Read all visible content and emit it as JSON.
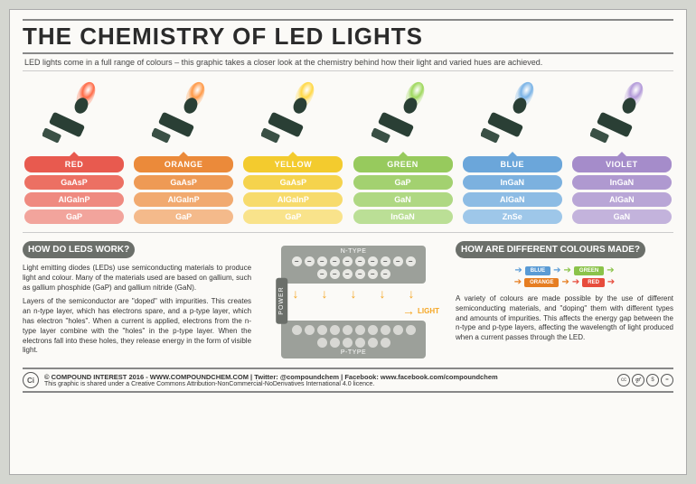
{
  "title": "THE CHEMISTRY OF LED LIGHTS",
  "subtitle": "LED lights come in a full range of colours – this graphic takes a closer look at the chemistry behind how their light and varied hues are achieved.",
  "columns": [
    {
      "name": "RED",
      "color": "#e74c3c",
      "flame": "#ff6b47",
      "pills": [
        "#e85a4f",
        "#ec7063",
        "#ef8a80",
        "#f2a49c"
      ],
      "chems": [
        "GaAsP",
        "AlGaInP",
        "GaP"
      ]
    },
    {
      "name": "ORANGE",
      "color": "#e67e22",
      "flame": "#ff9947",
      "pills": [
        "#eb8a3a",
        "#ee9a55",
        "#f1aa70",
        "#f4ba8b"
      ],
      "chems": [
        "GaAsP",
        "AlGaInP",
        "GaP"
      ]
    },
    {
      "name": "YELLOW",
      "color": "#f1c40f",
      "flame": "#ffd847",
      "pills": [
        "#f3cb2e",
        "#f5d34d",
        "#f7db6c",
        "#f9e38b"
      ],
      "chems": [
        "GaAsP",
        "AlGaInP",
        "GaP"
      ]
    },
    {
      "name": "GREEN",
      "color": "#8bc34a",
      "flame": "#9fd85e",
      "pills": [
        "#97ca5d",
        "#a3d170",
        "#afd883",
        "#bbdf96"
      ],
      "chems": [
        "GaP",
        "GaN",
        "InGaN"
      ]
    },
    {
      "name": "BLUE",
      "color": "#5a9bd5",
      "flame": "#7ab3e6",
      "pills": [
        "#6ba6da",
        "#7cb1df",
        "#8dbce4",
        "#9ec7e9"
      ],
      "chems": [
        "InGaN",
        "AlGaN",
        "ZnSe"
      ]
    },
    {
      "name": "VIOLET",
      "color": "#9b7fc4",
      "flame": "#b39ad9",
      "pills": [
        "#a58cca",
        "#af99d0",
        "#b9a6d6",
        "#c3b3dc"
      ],
      "chems": [
        "InGaN",
        "AlGaN",
        "GaN"
      ]
    }
  ],
  "how_work": {
    "heading": "HOW DO LEDS WORK?",
    "p1": "Light emitting diodes (LEDs) use semiconducting materials to produce light and colour. Many of the materials used are based on gallium, such as gallium phosphide (GaP) and gallium nitride (GaN).",
    "p2": "Layers of the semiconductor are \"doped\" with impurities. This creates an n-type layer, which has electrons spare, and a p-type layer, which has electron \"holes\". When a current is applied, electrons from the n-type layer combine with the \"holes\" in the p-type layer. When the electrons fall into these holes, they release energy in the form of visible light."
  },
  "diagram": {
    "ntype": "N-TYPE",
    "ptype": "P-TYPE",
    "power": "POWER",
    "light": "LIGHT"
  },
  "colours": {
    "heading": "HOW ARE DIFFERENT COLOURS MADE?",
    "rows": [
      {
        "arrow": "#5a9bd5",
        "label": "BLUE",
        "bg": "#5a9bd5"
      },
      {
        "arrow": "#8bc34a",
        "label": "GREEN",
        "bg": "#8bc34a"
      },
      {
        "arrow": "#e67e22",
        "label": "ORANGE",
        "bg": "#e67e22"
      },
      {
        "arrow": "#e74c3c",
        "label": "RED",
        "bg": "#e74c3c"
      }
    ],
    "text": "A variety of colours are made possible by the use of different semiconducting materials, and \"doping\" them with different types and amounts of impurities. This affects the energy gap between the n-type and p-type layers, affecting the wavelength of light produced when a current passes through the LED."
  },
  "footer": {
    "main": "© COMPOUND INTEREST 2016 - WWW.COMPOUNDCHEM.COM | Twitter: @compoundchem | Facebook: www.facebook.com/compoundchem",
    "sub": "This graphic is shared under a Creative Commons Attribution-NonCommercial-NoDerivatives International 4.0 licence.",
    "cc": [
      "cc",
      "BY",
      "NC",
      "ND"
    ]
  }
}
